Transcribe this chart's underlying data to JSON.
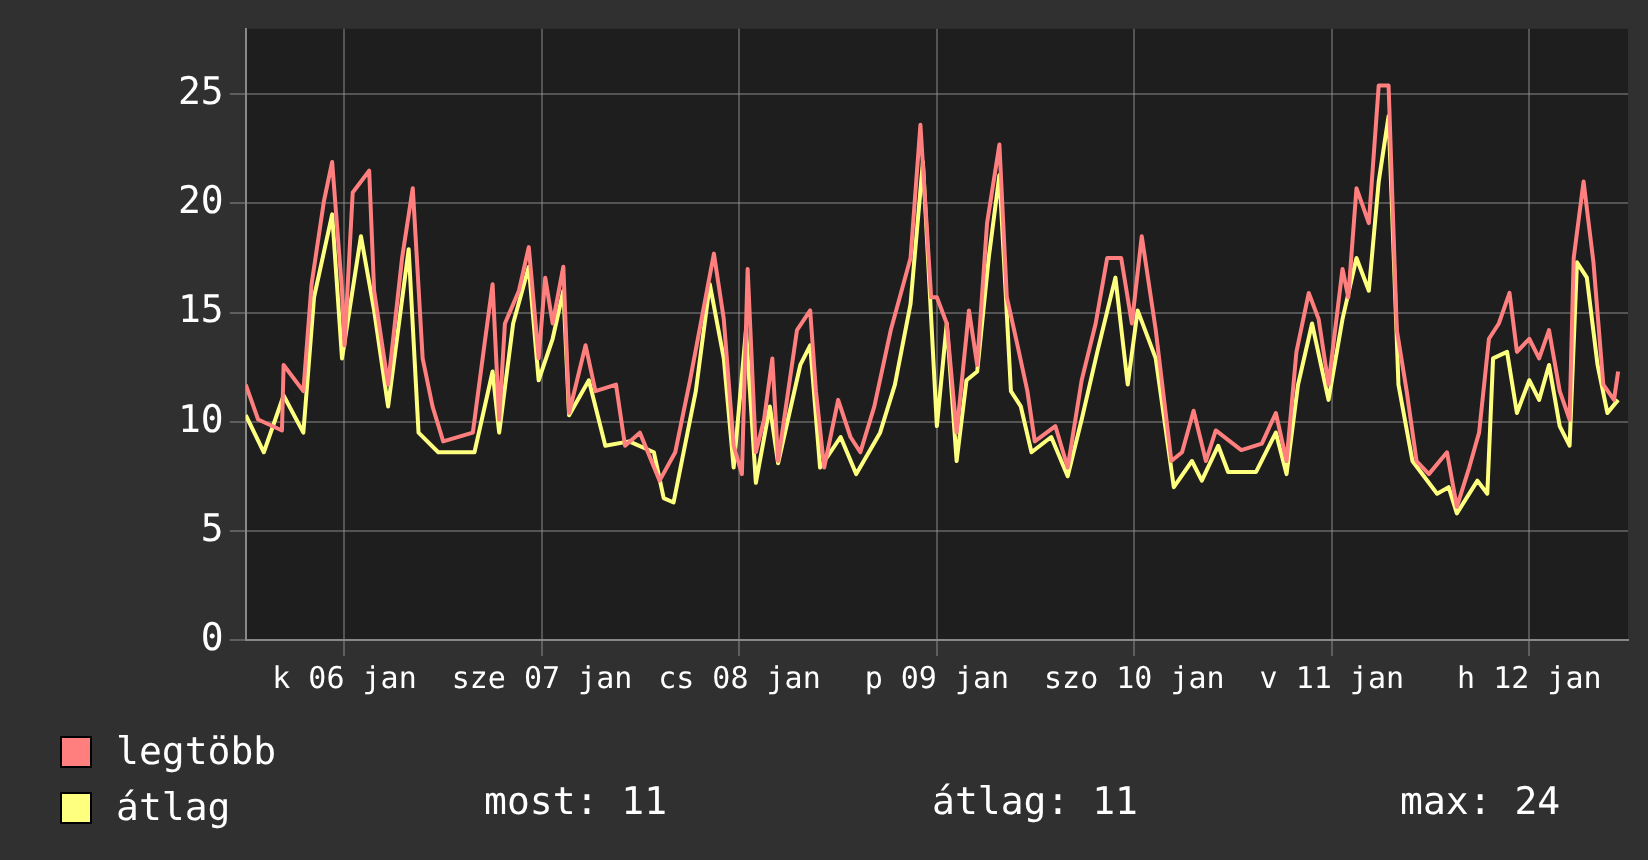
{
  "chart_data": {
    "type": "line",
    "xlim": [
      "--01-06T00:00",
      "--01-13T00:00"
    ],
    "ylim": [
      0,
      28
    ],
    "xticks": [
      {
        "value": "--01-06T12:00",
        "label": "k 06 jan"
      },
      {
        "value": "--01-07T12:00",
        "label": "sze 07 jan"
      },
      {
        "value": "--01-08T12:00",
        "label": "cs 08 jan"
      },
      {
        "value": "--01-09T12:00",
        "label": "p 09 jan"
      },
      {
        "value": "--01-10T12:00",
        "label": "szo 10 jan"
      },
      {
        "value": "--01-11T12:00",
        "label": "v 11 jan"
      },
      {
        "value": "--01-12T12:00",
        "label": "h 12 jan"
      }
    ],
    "yticks": [
      0,
      5,
      10,
      15,
      20,
      25
    ],
    "grid": true,
    "legend": "bottom left",
    "marker": "none",
    "line_style": "solid",
    "series": [
      {
        "name": "legtöbb",
        "color": "#ff7f7f",
        "x": [
          "--01-06T00:00",
          "--01-06T01:30",
          "--01-06T04:24",
          "--01-06T04:36",
          "--01-06T07:00",
          "--01-06T08:00",
          "--01-06T09:30",
          "--01-06T10:30",
          "--01-06T11:42",
          "--01-06T12:00",
          "--01-06T13:00",
          "--01-06T15:00",
          "--01-06T15:36",
          "--01-06T17:18",
          "--01-06T19:00",
          "--01-06T20:18",
          "--01-06T21:30",
          "--01-06T22:42",
          "--01-07T00:00",
          "--01-07T03:36",
          "--01-07T05:00",
          "--01-07T06:00",
          "--01-07T06:48",
          "--01-07T07:30",
          "--01-07T09:12",
          "--01-07T10:24",
          "--01-07T11:36",
          "--01-07T12:24",
          "--01-07T13:18",
          "--01-07T14:36",
          "--01-07T15:18",
          "--01-07T17:18",
          "--01-07T18:30",
          "--01-07T21:00",
          "--01-07T22:06",
          "--01-07T23:54",
          "--01-08T02:18",
          "--01-08T04:12",
          "--01-08T06:00",
          "--01-08T08:54",
          "--01-08T10:06",
          "--01-08T11:18",
          "--01-08T12:18",
          "--01-08T13:00",
          "--01-08T14:00",
          "--01-08T15:00",
          "--01-08T16:00",
          "--01-08T16:42",
          "--01-08T19:00",
          "--01-08T20:36",
          "--01-08T21:18",
          "--01-08T22:18",
          "--01-09T00:00",
          "--01-09T01:30",
          "--01-09T02:42",
          "--01-09T04:24",
          "--01-09T06:24",
          "--01-09T08:48",
          "--01-09T10:00",
          "--01-09T11:18",
          "--01-09T12:00",
          "--01-09T13:12",
          "--01-09T14:24",
          "--01-09T15:54",
          "--01-09T16:54",
          "--01-09T18:06",
          "--01-09T19:36",
          "--01-09T20:30",
          "--01-09T21:48",
          "--01-09T23:00",
          "--01-09T23:54",
          "--01-10T02:24",
          "--01-10T03:54",
          "--01-10T05:36",
          "--01-10T07:18",
          "--01-10T08:42",
          "--01-10T10:24",
          "--01-10T11:42",
          "--01-10T12:54",
          "--01-10T14:36",
          "--01-10T16:30",
          "--01-10T17:48",
          "--01-10T19:12",
          "--01-10T20:42",
          "--01-10T21:54",
          "--01-11T01:00",
          "--01-11T03:30",
          "--01-11T05:12",
          "--01-11T06:30",
          "--01-11T07:42",
          "--01-11T09:12",
          "--01-11T10:24",
          "--01-11T11:36",
          "--01-11T13:18",
          "--01-11T14:00",
          "--01-11T15:00",
          "--01-11T16:30",
          "--01-11T17:42",
          "--01-11T18:54",
          "--01-11T19:54",
          "--01-11T21:06",
          "--01-11T22:18",
          "--01-11T23:48",
          "--01-12T02:00",
          "--01-12T03:12",
          "--01-12T04:42",
          "--01-12T05:54",
          "--01-12T07:06",
          "--01-12T08:18",
          "--01-12T09:36",
          "--01-12T10:30",
          "--01-12T12:00",
          "--01-12T13:12",
          "--01-12T14:24",
          "--01-12T15:42",
          "--01-12T16:54",
          "--01-12T17:24",
          "--01-12T18:36",
          "--01-12T19:48",
          "--01-12T21:00",
          "--01-12T22:18",
          "--01-12T22:48"
        ],
        "values": [
          11.7,
          10.1,
          9.6,
          12.6,
          11.4,
          16.3,
          20.1,
          21.9,
          16,
          13.5,
          20.5,
          21.5,
          16,
          11.7,
          17.5,
          20.7,
          12.9,
          10.7,
          9.1,
          9.5,
          13.5,
          16.3,
          10.1,
          14.5,
          16,
          18,
          12.9,
          16.6,
          14.5,
          17.1,
          10.4,
          13.5,
          11.4,
          11.7,
          8.9,
          9.5,
          7.3,
          8.6,
          11.9,
          17.7,
          14.7,
          8.9,
          7.6,
          17,
          8.6,
          10.1,
          12.9,
          8.2,
          14.2,
          15.1,
          11.4,
          7.9,
          11,
          9.3,
          8.6,
          10.7,
          14.2,
          17.5,
          23.6,
          15.7,
          15.7,
          14.5,
          9.5,
          15.1,
          12.6,
          19.1,
          22.7,
          15.7,
          13.5,
          11.4,
          9.1,
          9.8,
          7.9,
          11.9,
          14.5,
          17.5,
          17.5,
          14.5,
          18.5,
          14.2,
          8.2,
          8.6,
          10.5,
          8.2,
          9.6,
          8.7,
          9,
          10.4,
          8.2,
          13.2,
          15.9,
          14.7,
          11.7,
          17,
          15.7,
          20.7,
          19.1,
          25.4,
          25.4,
          14.2,
          11.4,
          8.2,
          7.6,
          8.6,
          6.1,
          7.9,
          9.5,
          13.8,
          14.5,
          15.9,
          13.2,
          13.8,
          12.9,
          14.2,
          11.4,
          10.1,
          17.5,
          21,
          17.3,
          11.7,
          11,
          12.3
        ]
      },
      {
        "name": "átlag",
        "color": "#ffff7f",
        "x": [
          "--01-06T00:00",
          "--01-06T02:12",
          "--01-06T04:36",
          "--01-06T07:00",
          "--01-06T08:18",
          "--01-06T10:30",
          "--01-06T11:42",
          "--01-06T14:00",
          "--01-06T15:36",
          "--01-06T17:18",
          "--01-06T19:48",
          "--01-06T21:00",
          "--01-06T23:24",
          "--01-07T03:48",
          "--01-07T06:00",
          "--01-07T06:48",
          "--01-07T08:30",
          "--01-07T10:24",
          "--01-07T11:36",
          "--01-07T13:18",
          "--01-07T14:36",
          "--01-07T15:18",
          "--01-07T17:42",
          "--01-07T19:42",
          "--01-07T22:36",
          "--01-08T01:36",
          "--01-08T02:48",
          "--01-08T04:00",
          "--01-08T06:42",
          "--01-08T08:24",
          "--01-08T10:06",
          "--01-08T11:18",
          "--01-08T12:48",
          "--01-08T14:00",
          "--01-08T15:42",
          "--01-08T16:42",
          "--01-08T19:24",
          "--01-08T20:36",
          "--01-08T21:48",
          "--01-09T00:18",
          "--01-09T02:12",
          "--01-09T05:06",
          "--01-09T06:54",
          "--01-09T08:48",
          "--01-09T10:18",
          "--01-09T12:00",
          "--01-09T13:12",
          "--01-09T14:24",
          "--01-09T15:36",
          "--01-09T16:54",
          "--01-09T18:18",
          "--01-09T19:36",
          "--01-09T21:00",
          "--01-09T22:12",
          "--01-09T23:30",
          "--01-10T01:54",
          "--01-10T03:54",
          "--01-10T05:36",
          "--01-10T07:30",
          "--01-10T09:42",
          "--01-10T11:12",
          "--01-10T12:24",
          "--01-10T14:36",
          "--01-10T16:48",
          "--01-10T19:00",
          "--01-10T20:12",
          "--01-10T22:12",
          "--01-10T23:24",
          "--01-11T02:48",
          "--01-11T05:12",
          "--01-11T06:30",
          "--01-11T07:54",
          "--01-11T09:36",
          "--01-11T11:36",
          "--01-11T13:18",
          "--01-11T15:00",
          "--01-11T16:30",
          "--01-11T17:42",
          "--01-11T18:54",
          "--01-11T20:06",
          "--01-11T21:48",
          "--01-12T00:48",
          "--01-12T02:12",
          "--01-12T03:12",
          "--01-12T05:42",
          "--01-12T06:54",
          "--01-12T07:36",
          "--01-12T09:18",
          "--01-12T10:30",
          "--01-12T12:00",
          "--01-12T13:12",
          "--01-12T14:24",
          "--01-12T15:42",
          "--01-12T16:54",
          "--01-12T17:48",
          "--01-12T19:00",
          "--01-12T20:18",
          "--01-12T21:30",
          "--01-12T22:48"
        ],
        "values": [
          10.3,
          8.6,
          11.2,
          9.5,
          15.7,
          19.5,
          12.9,
          18.5,
          15.1,
          10.7,
          17.9,
          9.5,
          8.6,
          8.6,
          12.3,
          9.5,
          14.5,
          17.1,
          11.9,
          13.8,
          16,
          10.3,
          11.9,
          8.9,
          9.1,
          8.6,
          6.5,
          6.3,
          11.4,
          16.3,
          12.9,
          7.9,
          14.2,
          7.2,
          10.7,
          8.1,
          12.6,
          13.5,
          7.9,
          9.3,
          7.6,
          9.5,
          11.7,
          15.4,
          21.9,
          9.8,
          14.5,
          8.2,
          11.9,
          12.3,
          17.5,
          21.3,
          11.4,
          10.7,
          8.6,
          9.3,
          7.5,
          10.1,
          13.2,
          16.6,
          11.7,
          15.1,
          12.9,
          7,
          8.2,
          7.3,
          8.9,
          7.7,
          7.7,
          9.5,
          7.6,
          11.7,
          14.5,
          11,
          14.7,
          17.5,
          16,
          21,
          24,
          11.7,
          8.2,
          6.7,
          7,
          5.8,
          7.3,
          6.7,
          12.9,
          13.2,
          10.4,
          11.9,
          11,
          12.6,
          9.8,
          8.9,
          17.3,
          16.6,
          12.6,
          10.4,
          11
        ]
      }
    ],
    "annotations": [
      "most: 11",
      "átlag: 11",
      "max: 24"
    ]
  }
}
